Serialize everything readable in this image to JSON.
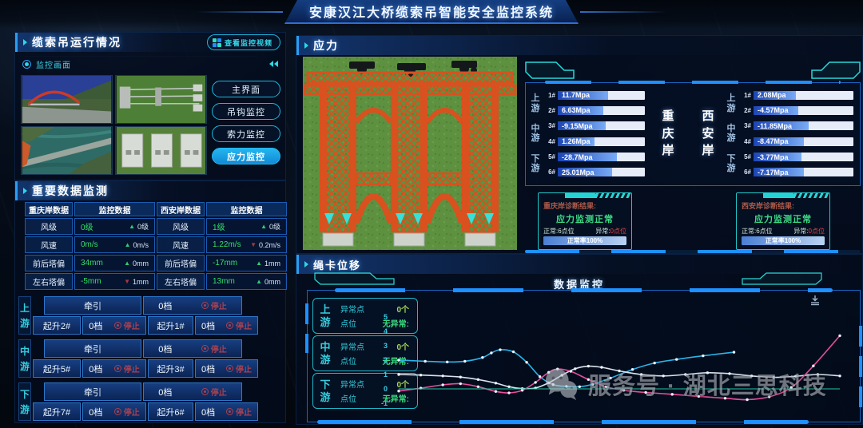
{
  "title": "安康汉江大桥缆索吊智能安全监控系统",
  "watermark": {
    "text": "服务号 · 湖北三思科技"
  },
  "colors": {
    "accent_blue": "#1e90ff",
    "accent_cyan": "#2ad8e8",
    "bar_fill_start": "#1c45b4",
    "bar_fill_end": "#79abf5",
    "value_green": "#35e06a",
    "alarm_red": "#e04545",
    "stop_red": "#a84050",
    "structure_orange": "#d8511f"
  },
  "left": {
    "panel1": {
      "title": "缆索吊运行情况",
      "video_button": {
        "label": "查看监控视频",
        "icon_colors": [
          "#2de0c8",
          "#1e90ff",
          "#1e90ff",
          "#2de0c8"
        ]
      },
      "sub_label": "监控画面",
      "nav_buttons": [
        {
          "label": "主界面",
          "active": false
        },
        {
          "label": "吊钩监控",
          "active": false
        },
        {
          "label": "索力监控",
          "active": false
        },
        {
          "label": "应力监控",
          "active": true
        }
      ],
      "thumbnails": [
        "thumb-bridge-panorama",
        "thumb-cable-system",
        "thumb-aerial-bridge",
        "thumb-tower-equipment"
      ]
    },
    "panel2": {
      "title": "重要数据监测",
      "table": {
        "headers": [
          "重庆岸数据",
          "监控数据",
          "西安岸数据",
          "监控数据"
        ],
        "rows": [
          {
            "l_label": "风级",
            "l_value": "0级",
            "l_trend": "up",
            "l_delta": "0级",
            "r_label": "风级",
            "r_value": "1级",
            "r_trend": "up",
            "r_delta": "0级"
          },
          {
            "l_label": "风速",
            "l_value": "0m/s",
            "l_trend": "up",
            "l_delta": "0m/s",
            "r_label": "风速",
            "r_value": "1.22m/s",
            "r_trend": "down",
            "r_delta": "0.2m/s"
          },
          {
            "l_label": "前后塔偏",
            "l_value": "34mm",
            "l_trend": "up",
            "l_delta": "0mm",
            "r_label": "前后塔偏",
            "r_value": "-17mm",
            "r_trend": "up",
            "r_delta": "1mm"
          },
          {
            "l_label": "左右塔偏",
            "l_value": "-5mm",
            "l_trend": "down",
            "l_delta": "1mm",
            "r_label": "左右塔偏",
            "r_value": "13mm",
            "r_trend": "up",
            "r_delta": "0mm"
          }
        ]
      },
      "controls": [
        {
          "region": "上游",
          "main_name": "牵引",
          "main_gear": "0档",
          "main_state": "停止",
          "subs": [
            {
              "name": "起升2#",
              "gear": "0档",
              "state": "停止"
            },
            {
              "name": "起升1#",
              "gear": "0档",
              "state": "停止"
            }
          ]
        },
        {
          "region": "中游",
          "main_name": "牵引",
          "main_gear": "0档",
          "main_state": "停止",
          "subs": [
            {
              "name": "起升5#",
              "gear": "0档",
              "state": "停止"
            },
            {
              "name": "起升3#",
              "gear": "0档",
              "state": "停止"
            }
          ]
        },
        {
          "region": "下游",
          "main_name": "牵引",
          "main_gear": "0档",
          "main_state": "停止",
          "subs": [
            {
              "name": "起升7#",
              "gear": "0档",
              "state": "停止"
            },
            {
              "name": "起升6#",
              "gear": "0档",
              "state": "停止"
            }
          ]
        }
      ]
    }
  },
  "stress": {
    "title": "应力",
    "banks": [
      {
        "name": "重庆岸",
        "side": "left",
        "regions": [
          "上游",
          "中游",
          "下游"
        ],
        "bars": [
          {
            "id": "1#",
            "value": "11.7Mpa",
            "pct": 58
          },
          {
            "id": "2#",
            "value": "6.63Mpa",
            "pct": 52
          },
          {
            "id": "3#",
            "value": "-9.15Mpa",
            "pct": 55
          },
          {
            "id": "4#",
            "value": "1.26Mpa",
            "pct": 42
          },
          {
            "id": "5#",
            "value": "-28.7Mpa",
            "pct": 68
          },
          {
            "id": "6#",
            "value": "25.01Mpa",
            "pct": 62
          }
        ]
      },
      {
        "name": "西安岸",
        "side": "right",
        "regions": [
          "上游",
          "中游",
          "下游"
        ],
        "bars": [
          {
            "id": "1#",
            "value": "2.08Mpa",
            "pct": 42
          },
          {
            "id": "2#",
            "value": "-4.57Mpa",
            "pct": 45
          },
          {
            "id": "3#",
            "value": "-11.85Mpa",
            "pct": 55
          },
          {
            "id": "4#",
            "value": "-8.47Mpa",
            "pct": 50
          },
          {
            "id": "5#",
            "value": "-3.77Mpa",
            "pct": 48
          },
          {
            "id": "6#",
            "value": "-7.17Mpa",
            "pct": 50
          }
        ]
      }
    ],
    "diagnosis": [
      {
        "title": "重庆岸诊断结果:",
        "result": "应力监测正常",
        "normal_label": "正常:",
        "normal_value": "6点位",
        "abnormal_label": "异常:",
        "abnormal_value": "0点位",
        "rate_label": "正常率100%",
        "rate_pct": 100
      },
      {
        "title": "西安岸诊断结果:",
        "result": "应力监测正常",
        "normal_label": "正常:",
        "normal_value": "6点位",
        "abnormal_label": "异常:",
        "abnormal_value": "0点位",
        "rate_label": "正常率100%",
        "rate_pct": 100
      }
    ]
  },
  "displacement": {
    "title": "绳卡位移",
    "chart_title": "数据监控",
    "groups": [
      {
        "region": "上游",
        "r1_label": "异常点",
        "r1_value": "0个",
        "r2_label": "点位",
        "r2_value": "无异常:"
      },
      {
        "region": "中游",
        "r1_label": "异常点",
        "r1_value": "0个",
        "r2_label": "点位",
        "r2_value": "无异常:"
      },
      {
        "region": "下游",
        "r1_label": "异常点",
        "r1_value": "0个",
        "r2_label": "点位",
        "r2_value": "无异常:"
      }
    ]
  },
  "chart_data": {
    "type": "line",
    "title": "数据监控",
    "xlabel": "",
    "ylabel": "",
    "ylim": [
      -1,
      5
    ],
    "yticks": [
      5,
      4,
      3,
      2,
      1,
      0,
      -1
    ],
    "grid": false,
    "legend": "none",
    "series": [
      {
        "name": "upstream-displacement",
        "color": "#2bb3e8",
        "points": [
          [
            0,
            2.0
          ],
          [
            6,
            1.92
          ],
          [
            11,
            1.87
          ],
          [
            15,
            1.92
          ],
          [
            19,
            2.18
          ],
          [
            21,
            2.5
          ],
          [
            23,
            2.72
          ],
          [
            26,
            2.58
          ],
          [
            29,
            1.85
          ],
          [
            32,
            0.85
          ],
          [
            35,
            0.3
          ],
          [
            38,
            0.17
          ],
          [
            41,
            0.15
          ],
          [
            44,
            0.32
          ],
          [
            48,
            0.75
          ],
          [
            53,
            1.35
          ],
          [
            58,
            1.8
          ],
          [
            63,
            2.05
          ],
          [
            69,
            2.3
          ],
          [
            76,
            2.55
          ]
        ]
      },
      {
        "name": "midstream-displacement",
        "color": "#d8e2ec",
        "points": [
          [
            0,
            1.0
          ],
          [
            5,
            0.96
          ],
          [
            10,
            0.9
          ],
          [
            14,
            0.82
          ],
          [
            18,
            0.65
          ],
          [
            22,
            0.4
          ],
          [
            25,
            0.15
          ],
          [
            28,
            0.02
          ],
          [
            31,
            0.06
          ],
          [
            34,
            0.42
          ],
          [
            37,
            0.95
          ],
          [
            40,
            1.4
          ],
          [
            43,
            1.58
          ],
          [
            46,
            1.5
          ],
          [
            50,
            1.25
          ],
          [
            55,
            1.0
          ],
          [
            60,
            0.9
          ],
          [
            65,
            1.0
          ],
          [
            70,
            1.12
          ],
          [
            75,
            1.06
          ],
          [
            80,
            0.9
          ],
          [
            85,
            0.8
          ],
          [
            90,
            0.88
          ],
          [
            95,
            1.0
          ],
          [
            100,
            0.9
          ]
        ]
      },
      {
        "name": "downstream-displacement",
        "color": "#e54f9b",
        "points": [
          [
            0,
            -0.15
          ],
          [
            5,
            0.05
          ],
          [
            10,
            0.28
          ],
          [
            14,
            0.36
          ],
          [
            18,
            0.15
          ],
          [
            22,
            -0.18
          ],
          [
            25,
            -0.28
          ],
          [
            28,
            -0.1
          ],
          [
            31,
            0.45
          ],
          [
            34,
            1.15
          ],
          [
            36,
            1.38
          ],
          [
            39,
            1.22
          ],
          [
            43,
            0.65
          ],
          [
            47,
            0.15
          ],
          [
            51,
            -0.1
          ],
          [
            56,
            -0.25
          ],
          [
            62,
            -0.38
          ],
          [
            68,
            -0.52
          ],
          [
            74,
            -0.65
          ],
          [
            79,
            -0.75
          ],
          [
            84,
            -0.55
          ],
          [
            89,
            0.1
          ],
          [
            94,
            1.6
          ],
          [
            100,
            3.7
          ]
        ]
      },
      {
        "name": "baseline",
        "color": "#1fc9a7",
        "points": [
          [
            0,
            0
          ],
          [
            12,
            0
          ],
          [
            25,
            0
          ],
          [
            37,
            0
          ],
          [
            50,
            0
          ],
          [
            62,
            0
          ],
          [
            75,
            0
          ],
          [
            87,
            0
          ],
          [
            100,
            0
          ]
        ]
      }
    ]
  }
}
